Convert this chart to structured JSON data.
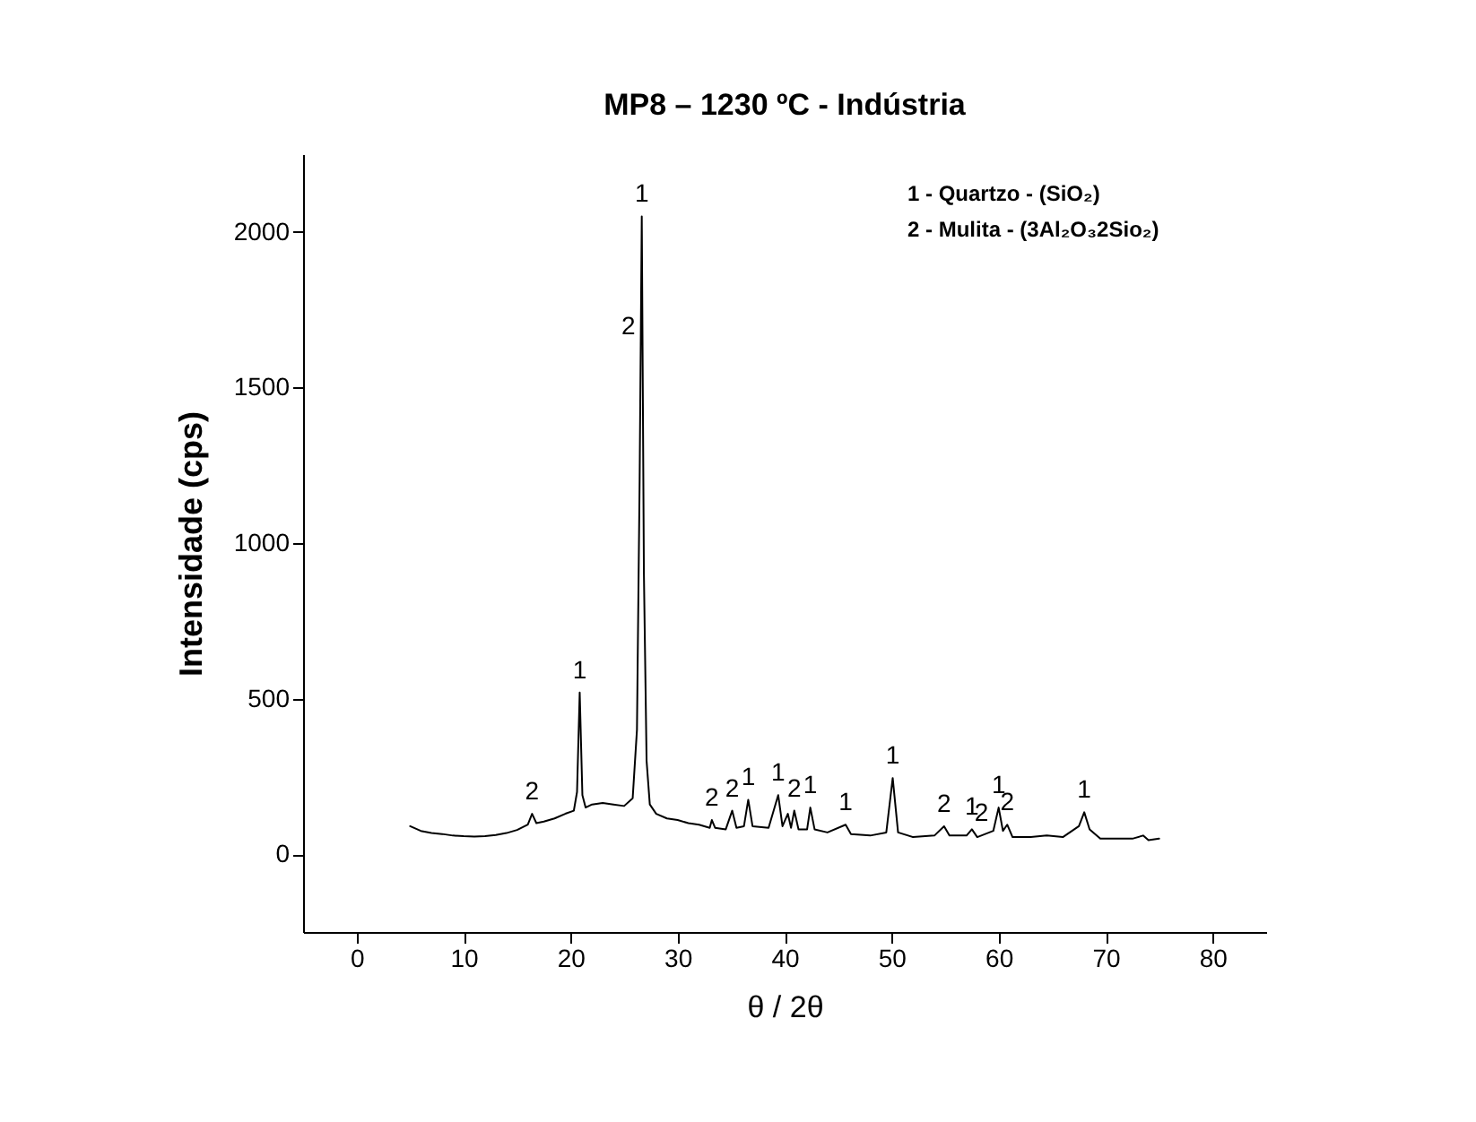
{
  "chart_data": {
    "type": "line",
    "title": "MP8 – 1230 ºC - Indústria",
    "xlabel": "θ / 2θ",
    "ylabel": "Intensidade (cps)",
    "x": [
      5,
      6,
      7,
      8,
      9,
      10,
      11,
      12,
      13,
      14,
      15,
      16,
      16.4,
      16.8,
      17.5,
      18.5,
      19.5,
      20.3,
      20.6,
      20.85,
      21.1,
      21.4,
      22,
      23,
      24,
      25,
      25.8,
      26.2,
      26.45,
      26.65,
      26.85,
      27.1,
      27.4,
      28,
      29,
      30,
      31,
      32,
      33,
      33.2,
      33.5,
      34.5,
      35.1,
      35.5,
      36.2,
      36.6,
      37,
      38.5,
      39.4,
      39.8,
      40.3,
      40.6,
      40.9,
      41.3,
      42.1,
      42.4,
      42.8,
      44,
      45.7,
      46.2,
      48,
      49.5,
      50.1,
      50.6,
      52,
      54,
      54.9,
      55.4,
      57,
      57.5,
      58,
      59.5,
      60,
      60.4,
      60.8,
      61.3,
      63,
      64.5,
      66,
      67.5,
      68,
      68.5,
      69.5,
      71,
      72.5,
      73.5,
      74,
      75
    ],
    "series": [
      {
        "color": "#000000",
        "values": [
          90,
          75,
          68,
          65,
          60,
          58,
          57,
          58,
          62,
          68,
          78,
          95,
          130,
          100,
          105,
          115,
          130,
          140,
          200,
          520,
          190,
          150,
          160,
          165,
          160,
          155,
          180,
          400,
          1200,
          2050,
          900,
          300,
          160,
          130,
          115,
          110,
          100,
          95,
          85,
          110,
          85,
          80,
          140,
          85,
          90,
          175,
          90,
          85,
          190,
          90,
          130,
          85,
          140,
          80,
          80,
          150,
          80,
          70,
          95,
          65,
          60,
          70,
          245,
          70,
          55,
          60,
          90,
          60,
          60,
          80,
          55,
          75,
          150,
          75,
          95,
          55,
          55,
          60,
          55,
          90,
          135,
          80,
          50,
          50,
          50,
          60,
          45,
          50
        ]
      }
    ],
    "xlim": [
      -5,
      85
    ],
    "ylim": [
      -250,
      2250
    ],
    "xticks": [
      0,
      10,
      20,
      30,
      40,
      50,
      60,
      70,
      80
    ],
    "yticks": [
      0,
      500,
      1000,
      1500,
      2000
    ],
    "grid": false,
    "marker": "none",
    "line_style": "solid",
    "annotations": [
      "1 - Quartzo - (SiO₂)",
      "2 - Mulita - (3Al₂O₃2Sio₂)",
      {
        "text": "1",
        "x": 26.65,
        "y": 2050
      },
      {
        "text": "2",
        "x": 26.55,
        "y": 1625
      },
      {
        "text": "1",
        "x": 20.85,
        "y": 520
      },
      {
        "text": "2",
        "x": 16.4,
        "y": 130
      },
      {
        "text": "2",
        "x": 33.2,
        "y": 110
      },
      {
        "text": "2",
        "x": 35.1,
        "y": 140
      },
      {
        "text": "1",
        "x": 36.6,
        "y": 175
      },
      {
        "text": "1",
        "x": 39.4,
        "y": 190
      },
      {
        "text": "2",
        "x": 40.9,
        "y": 140
      },
      {
        "text": "1",
        "x": 42.4,
        "y": 150
      },
      {
        "text": "1",
        "x": 45.7,
        "y": 95
      },
      {
        "text": "1",
        "x": 50.1,
        "y": 245
      },
      {
        "text": "2",
        "x": 54.9,
        "y": 90
      },
      {
        "text": "1",
        "x": 57.5,
        "y": 80
      },
      {
        "text": "2",
        "x": 58.4,
        "y": 60
      },
      {
        "text": "1",
        "x": 60,
        "y": 150
      },
      {
        "text": "2",
        "x": 60.8,
        "y": 95
      },
      {
        "text": "1",
        "x": 68,
        "y": 135
      }
    ]
  }
}
